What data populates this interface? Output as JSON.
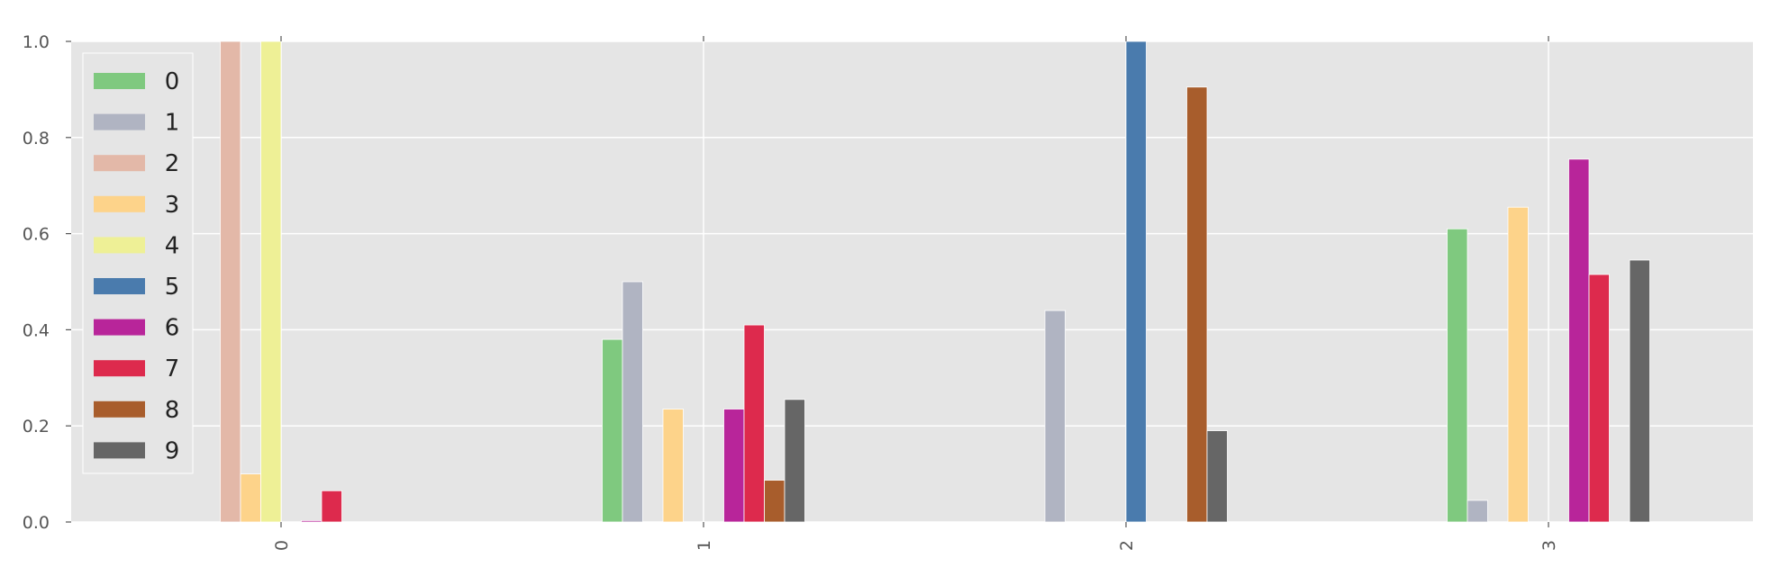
{
  "chart_data": {
    "type": "bar",
    "title": "",
    "xlabel": "",
    "ylabel": "",
    "categories": [
      "0",
      "1",
      "2",
      "3"
    ],
    "ylim": [
      0,
      1.0
    ],
    "yticks": [
      "0.0",
      "0.2",
      "0.4",
      "0.6",
      "0.8",
      "1.0"
    ],
    "grid": true,
    "legend_position": "top-left",
    "series": [
      {
        "name": "0",
        "color": "#7fc97f",
        "values": [
          0.0,
          0.38,
          0.0,
          0.61
        ]
      },
      {
        "name": "1",
        "color": "#b0b4c2",
        "values": [
          0.0,
          0.5,
          0.44,
          0.045
        ]
      },
      {
        "name": "2",
        "color": "#e3b8a8",
        "values": [
          1.0,
          0.0,
          0.0,
          0.0
        ]
      },
      {
        "name": "3",
        "color": "#fdd38a",
        "values": [
          0.1,
          0.235,
          0.0,
          0.655
        ]
      },
      {
        "name": "4",
        "color": "#eef096",
        "values": [
          1.0,
          0.0,
          0.0,
          0.0
        ]
      },
      {
        "name": "5",
        "color": "#4a7bad",
        "values": [
          0.0,
          0.0,
          1.0,
          0.0
        ]
      },
      {
        "name": "6",
        "color": "#b8259a",
        "values": [
          0.003,
          0.235,
          0.0,
          0.755
        ]
      },
      {
        "name": "7",
        "color": "#dd2a4d",
        "values": [
          0.065,
          0.41,
          0.0,
          0.515
        ]
      },
      {
        "name": "8",
        "color": "#a85d2c",
        "values": [
          0.0,
          0.087,
          0.905,
          0.0
        ]
      },
      {
        "name": "9",
        "color": "#666666",
        "values": [
          0.0,
          0.255,
          0.19,
          0.545
        ]
      }
    ]
  }
}
